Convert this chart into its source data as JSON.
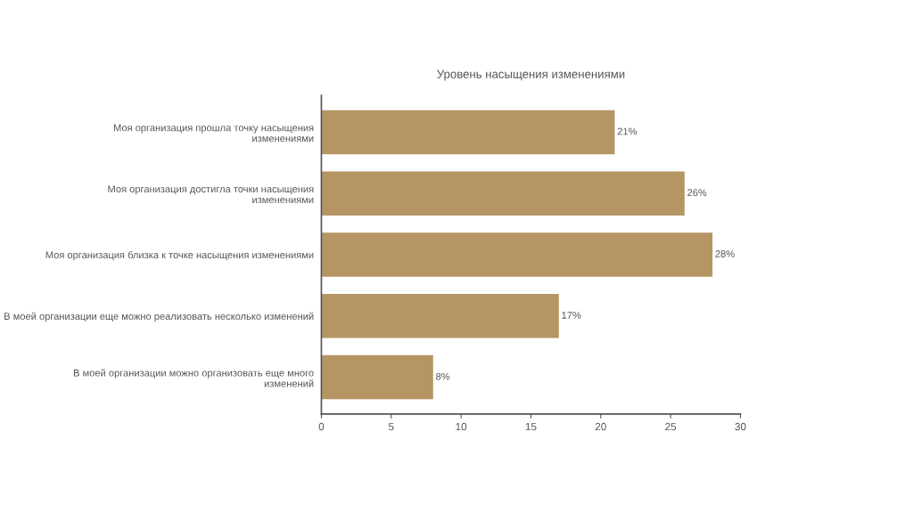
{
  "chart_data": {
    "type": "bar",
    "orientation": "horizontal",
    "title": "Уровень насыщения изменениями",
    "categories": [
      "Моя организация прошла точку насыщения\nизменениями",
      "Моя организация достигла точки насыщения\nизменениями",
      "Моя организация близка к точке насыщения изменениями",
      "В моей организации еще можно реализовать несколько изменений",
      "В моей организации можно организовать еще много\nизменений"
    ],
    "values": [
      21,
      26,
      28,
      17,
      8
    ],
    "value_labels": [
      "21%",
      "26%",
      "28%",
      "17%",
      "8%"
    ],
    "color": "#b59563",
    "xlim": [
      0,
      30
    ],
    "xticks": [
      0,
      5,
      10,
      15,
      20,
      25,
      30
    ],
    "grid": false,
    "legend": false
  }
}
